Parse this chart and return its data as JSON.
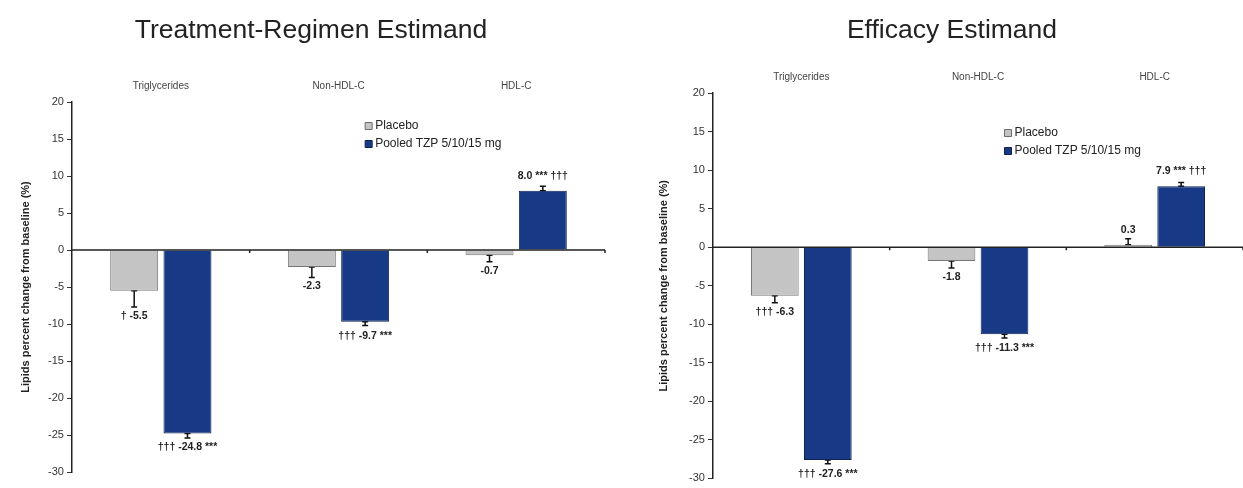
{
  "chart_data": [
    {
      "type": "bar",
      "title": "Treatment-Regimen Estimand",
      "categories": [
        "Triglycerides",
        "Non-HDL-C",
        "HDL-C"
      ],
      "ylabel": "Lipids percent change from baseline (%)",
      "ylim": [
        -30,
        20
      ],
      "yticks": [
        -30,
        -25,
        -20,
        -15,
        -10,
        -5,
        0,
        5,
        10,
        15,
        20
      ],
      "legend": "top",
      "series": [
        {
          "name": "Placebo",
          "color": "#c4c4c4",
          "values": [
            -5.5,
            -2.3,
            -0.7
          ],
          "errors": [
            [
              -7.7,
              -5.5
            ],
            [
              -3.7,
              -2.3
            ],
            [
              -1.6,
              -0.7
            ]
          ],
          "value_labels": [
            "† -5.5",
            "-2.3",
            "-0.7"
          ]
        },
        {
          "name": "Pooled TZP 5/10/15 mg",
          "color": "#183a86",
          "values": [
            -24.8,
            -9.7,
            8.0
          ],
          "errors": [
            [
              -25.4,
              -24.8
            ],
            [
              -10.2,
              -9.7
            ],
            [
              8.0,
              8.6
            ]
          ],
          "value_labels": [
            "††† -24.8 ***",
            "††† -9.7 ***",
            "8.0 *** †††"
          ]
        }
      ]
    },
    {
      "type": "bar",
      "title": "Efficacy Estimand",
      "categories": [
        "Triglycerides",
        "Non-HDL-C",
        "HDL-C"
      ],
      "ylabel": "Lipids percent change from baseline (%)",
      "ylim": [
        -30,
        20
      ],
      "yticks": [
        -30,
        -25,
        -20,
        -15,
        -10,
        -5,
        0,
        5,
        10,
        15,
        20
      ],
      "legend": "top",
      "series": [
        {
          "name": "Placebo",
          "color": "#c4c4c4",
          "values": [
            -6.3,
            -1.8,
            0.3
          ],
          "errors": [
            [
              -7.2,
              -6.3
            ],
            [
              -2.7,
              -1.8
            ],
            [
              0.3,
              1.1
            ]
          ],
          "value_labels": [
            "††† -6.3",
            "-1.8",
            "0.3"
          ]
        },
        {
          "name": "Pooled TZP 5/10/15 mg",
          "color": "#183a86",
          "values": [
            -27.6,
            -11.3,
            7.9
          ],
          "errors": [
            [
              -28.1,
              -27.6
            ],
            [
              -11.8,
              -11.3
            ],
            [
              7.9,
              8.4
            ]
          ],
          "value_labels": [
            "††† -27.6 ***",
            "††† -11.3 ***",
            "7.9 *** †††"
          ]
        }
      ]
    }
  ]
}
